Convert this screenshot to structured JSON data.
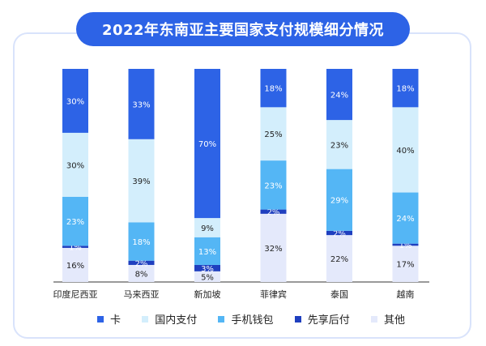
{
  "chart_data": {
    "type": "bar",
    "stacked": true,
    "title": "2022年东南亚主要国家支付规模细分情况",
    "categories": [
      "印度尼西亚",
      "马来西亚",
      "新加坡",
      "菲律宾",
      "泰国",
      "越南"
    ],
    "ylim": [
      0,
      100
    ],
    "legend_position": "bottom",
    "series": [
      {
        "name": "其他",
        "color": "#e4e9fb",
        "values": [
          16,
          8,
          5,
          32,
          22,
          17
        ]
      },
      {
        "name": "先享后付",
        "color": "#1f3fbf",
        "values": [
          1,
          2,
          3,
          2,
          2,
          1
        ]
      },
      {
        "name": "手机钱包",
        "color": "#54b6f5",
        "values": [
          23,
          18,
          13,
          23,
          29,
          24
        ]
      },
      {
        "name": "国内支付",
        "color": "#d3eefc",
        "values": [
          30,
          39,
          9,
          25,
          23,
          40
        ]
      },
      {
        "name": "卡",
        "color": "#2d63e6",
        "values": [
          30,
          33,
          70,
          18,
          24,
          18
        ]
      }
    ],
    "data_labels": [
      [
        "16%",
        "8%",
        "5%",
        "32%",
        "22%",
        "17%"
      ],
      [
        "1%",
        "2%",
        "3%",
        "2%",
        "2%",
        "1%"
      ],
      [
        "23%",
        "18%",
        "13%",
        "23%",
        "29%",
        "24%"
      ],
      [
        "30%",
        "39%",
        "9%",
        "25%",
        "23%",
        "40%"
      ],
      [
        "30%",
        "33%",
        "70%",
        "18%",
        "24%",
        "18%"
      ]
    ],
    "legend_order": [
      "卡",
      "国内支付",
      "手机钱包",
      "先享后付",
      "其他"
    ]
  },
  "legend": {
    "items": [
      {
        "label": "卡",
        "color": "#2d63e6"
      },
      {
        "label": "国内支付",
        "color": "#d3eefc"
      },
      {
        "label": "手机钱包",
        "color": "#54b6f5"
      },
      {
        "label": "先享后付",
        "color": "#1f3fbf"
      },
      {
        "label": "其他",
        "color": "#e4e9fb"
      }
    ]
  }
}
